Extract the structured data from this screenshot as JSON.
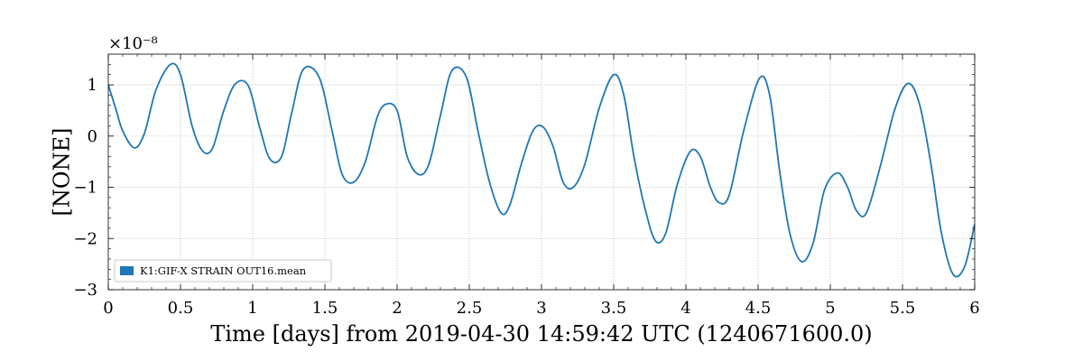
{
  "chart_data": {
    "type": "line",
    "xlabel": "Time [days] from 2019-04-30 14:59:42 UTC (1240671600.0)",
    "ylabel": "[NONE]",
    "y_multiplier_label": "×10⁻⁸",
    "xlim": [
      0,
      6
    ],
    "ylim": [
      -3,
      1.6
    ],
    "x_ticks": [
      0,
      0.5,
      1,
      1.5,
      2,
      2.5,
      3,
      3.5,
      4,
      4.5,
      5,
      5.5,
      6
    ],
    "x_tick_labels": [
      "0",
      "0.5",
      "1",
      "1.5",
      "2",
      "2.5",
      "3",
      "3.5",
      "4",
      "4.5",
      "5",
      "5.5",
      "6"
    ],
    "y_ticks": [
      -3,
      -2,
      -1,
      0,
      1
    ],
    "y_tick_labels": [
      "−3",
      "−2",
      "−1",
      "0",
      "1"
    ],
    "grid": true,
    "legend_position": "lower-left",
    "series": [
      {
        "name": "K1:GIF-X STRAIN OUT16.mean",
        "color": "#1f77b4",
        "x": [
          0,
          0.05,
          0.1,
          0.18,
          0.25,
          0.33,
          0.43,
          0.5,
          0.58,
          0.65,
          0.72,
          0.8,
          0.88,
          0.97,
          1.05,
          1.12,
          1.2,
          1.27,
          1.35,
          1.46,
          1.55,
          1.62,
          1.7,
          1.78,
          1.86,
          1.92,
          2.0,
          2.07,
          2.15,
          2.22,
          2.3,
          2.38,
          2.48,
          2.56,
          2.64,
          2.72,
          2.78,
          2.86,
          2.94,
          3.01,
          3.08,
          3.15,
          3.22,
          3.3,
          3.4,
          3.5,
          3.57,
          3.64,
          3.72,
          3.79,
          3.86,
          3.94,
          4.03,
          4.1,
          4.17,
          4.23,
          4.3,
          4.4,
          4.51,
          4.58,
          4.65,
          4.72,
          4.8,
          4.88,
          4.96,
          5.05,
          5.12,
          5.18,
          5.25,
          5.35,
          5.45,
          5.54,
          5.62,
          5.7,
          5.77,
          5.85,
          5.93,
          6.0
        ],
        "y": [
          1.0,
          0.55,
          0.1,
          -0.23,
          0.05,
          0.9,
          1.4,
          1.2,
          0.2,
          -0.28,
          -0.25,
          0.5,
          1.02,
          0.98,
          0.15,
          -0.45,
          -0.4,
          0.45,
          1.3,
          1.15,
          0.1,
          -0.75,
          -0.9,
          -0.5,
          0.35,
          0.62,
          0.5,
          -0.4,
          -0.75,
          -0.55,
          0.4,
          1.28,
          1.15,
          0.1,
          -0.9,
          -1.5,
          -1.35,
          -0.55,
          0.1,
          0.18,
          -0.2,
          -0.9,
          -1.0,
          -0.55,
          0.55,
          1.2,
          0.8,
          -0.4,
          -1.45,
          -2.05,
          -1.9,
          -0.95,
          -0.3,
          -0.4,
          -1.0,
          -1.3,
          -1.15,
          0.1,
          1.13,
          0.8,
          -0.7,
          -1.9,
          -2.45,
          -2.1,
          -1.05,
          -0.72,
          -1.0,
          -1.45,
          -1.5,
          -0.55,
          0.55,
          1.03,
          0.6,
          -0.6,
          -1.9,
          -2.7,
          -2.55,
          -1.72
        ]
      }
    ]
  }
}
